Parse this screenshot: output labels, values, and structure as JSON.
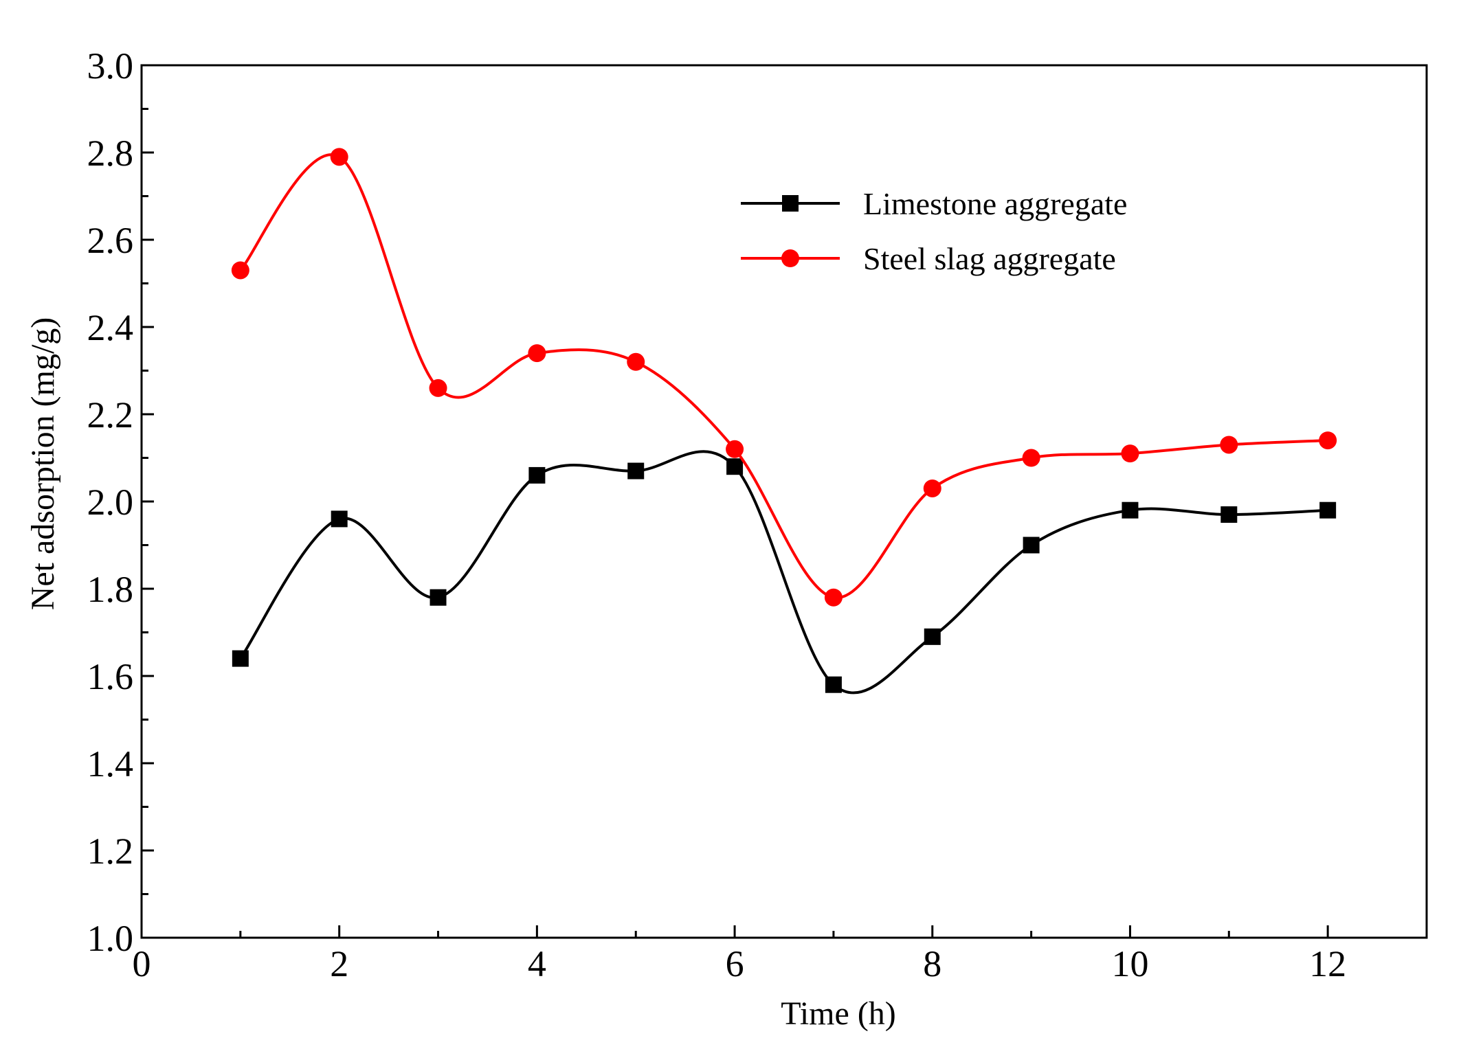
{
  "chart_data": {
    "type": "line",
    "title": "",
    "xlabel": "Time (h)",
    "ylabel": "Net adsorption (mg/g)",
    "xlim": [
      0,
      13
    ],
    "ylim": [
      1.0,
      3.0
    ],
    "x_ticks": [
      0,
      2,
      4,
      6,
      8,
      10,
      12
    ],
    "x_tick_labels": [
      "0",
      "2",
      "4",
      "6",
      "8",
      "10",
      "12"
    ],
    "y_ticks": [
      1.0,
      1.2,
      1.4,
      1.6,
      1.8,
      2.0,
      2.2,
      2.4,
      2.6,
      2.8,
      3.0
    ],
    "y_tick_labels": [
      "1.0",
      "1.2",
      "1.4",
      "1.6",
      "1.8",
      "2.0",
      "2.2",
      "2.4",
      "2.6",
      "2.8",
      "3.0"
    ],
    "grid": false,
    "legend_position": "top-right",
    "x": [
      1,
      2,
      3,
      4,
      5,
      6,
      7,
      8,
      9,
      10,
      11,
      12
    ],
    "series": [
      {
        "name": "Limestone aggregate",
        "color": "#000000",
        "marker": "square",
        "values": [
          1.64,
          1.96,
          1.78,
          2.06,
          2.07,
          2.08,
          1.58,
          1.69,
          1.9,
          1.98,
          1.97,
          1.98
        ]
      },
      {
        "name": "Steel slag aggregate",
        "color": "#ff0000",
        "marker": "circle",
        "values": [
          2.53,
          2.79,
          2.26,
          2.34,
          2.32,
          2.12,
          1.78,
          2.03,
          2.1,
          2.11,
          2.13,
          2.14
        ]
      }
    ]
  }
}
